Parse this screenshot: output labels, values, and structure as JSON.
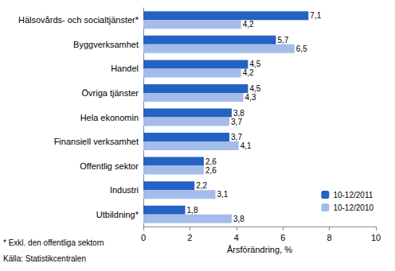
{
  "chart_data": {
    "type": "bar",
    "orientation": "horizontal",
    "categories": [
      "Hälsovårds- och socialtjänster*",
      "Byggverksamhet",
      "Handel",
      "Övriga tjänster",
      "Hela ekonomin",
      "Finansiell verksamhet",
      "Offentlig sektor",
      "Industri",
      "Utbildning*"
    ],
    "series": [
      {
        "name": "10-12/2011",
        "color": "#2462c4",
        "values": [
          7.1,
          5.7,
          4.5,
          4.5,
          3.8,
          3.7,
          2.6,
          2.2,
          1.8
        ],
        "value_labels": [
          "7,1",
          "5,7",
          "4,5",
          "4,5",
          "3,8",
          "3,7",
          "2,6",
          "2,2",
          "1,8"
        ]
      },
      {
        "name": "10-12/2010",
        "color": "#a4bcea",
        "values": [
          4.2,
          6.5,
          4.2,
          4.3,
          3.7,
          4.1,
          2.6,
          3.1,
          3.8
        ],
        "value_labels": [
          "4,2",
          "6,5",
          "4,2",
          "4,3",
          "3,7",
          "4,1",
          "2,6",
          "3,1",
          "3,8"
        ]
      }
    ],
    "x_label": "Årsförändring, %",
    "xlim": [
      0,
      10
    ],
    "xticks": [
      0,
      2,
      4,
      6,
      8,
      10
    ],
    "grid": false,
    "legend": "lower right",
    "data_labels": true,
    "annotations": [
      "* Exkl. den offentliga sektorn",
      "Källa: Statistikcentralen"
    ]
  }
}
